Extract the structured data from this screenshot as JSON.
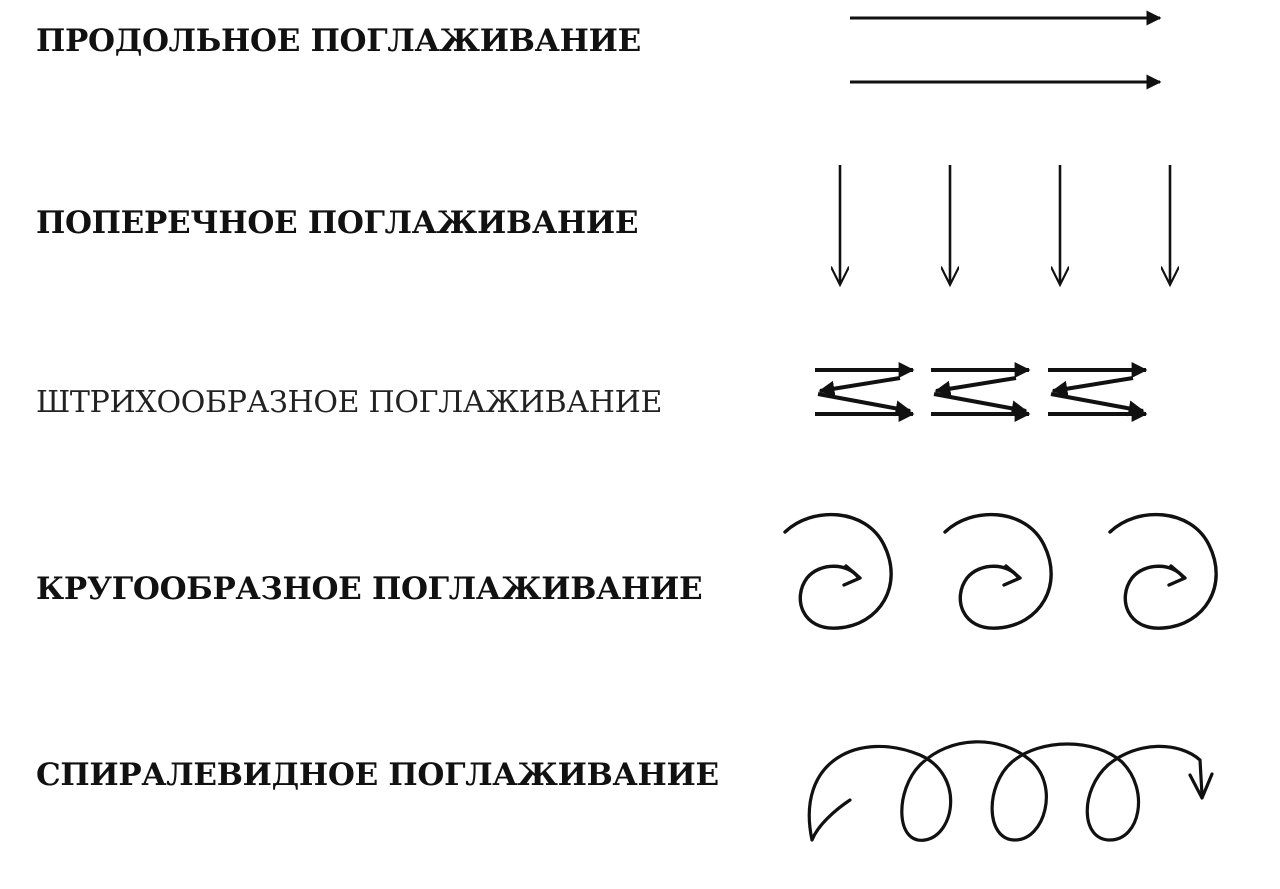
{
  "techniques": [
    {
      "label": "ПРОДОЛЬНОЕ ПОГЛАЖИВАНИЕ",
      "pattern": "parallel-right-arrows-icon"
    },
    {
      "label": "ПОПЕРЕЧНОЕ ПОГЛАЖИВАНИЕ",
      "pattern": "down-arrows-icon"
    },
    {
      "label": "ШТРИХООБРАЗНОЕ ПОГЛАЖИВАНИЕ",
      "pattern": "zigzag-arrows-icon"
    },
    {
      "label": "КРУГООБРАЗНОЕ ПОГЛАЖИВАНИЕ",
      "pattern": "spiral-arrows-icon"
    },
    {
      "label": "СПИРАЛЕВИДНОЕ ПОГЛАЖИВАНИЕ",
      "pattern": "loop-arrow-icon"
    }
  ],
  "colors": {
    "ink": "#111111",
    "background": "#ffffff"
  }
}
